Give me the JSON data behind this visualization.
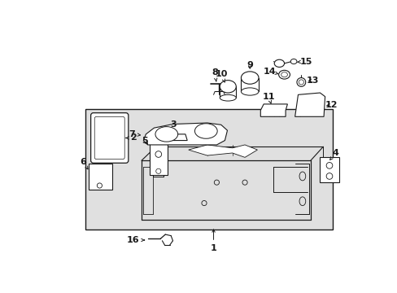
{
  "bg_color": "#ffffff",
  "box_color": "#e0e0e0",
  "line_color": "#1a1a1a",
  "figsize": [
    4.89,
    3.6
  ],
  "dpi": 100
}
